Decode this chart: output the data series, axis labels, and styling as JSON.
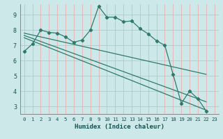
{
  "xlabel": "Humidex (Indice chaleur)",
  "bg_color": "#cce8e8",
  "grid_color": "#e8b0b0",
  "line_color": "#2e7b6e",
  "xlim": [
    -0.5,
    23.5
  ],
  "ylim": [
    2.5,
    9.7
  ],
  "yticks": [
    3,
    4,
    5,
    6,
    7,
    8,
    9
  ],
  "xticks": [
    0,
    1,
    2,
    3,
    4,
    5,
    6,
    7,
    8,
    9,
    10,
    11,
    12,
    13,
    14,
    15,
    16,
    17,
    18,
    19,
    20,
    21,
    22,
    23
  ],
  "curve_main": {
    "x": [
      0,
      1,
      2,
      3,
      4,
      5,
      6,
      7,
      8,
      9,
      10,
      11,
      12,
      13,
      14,
      15,
      16,
      17,
      18,
      19,
      20,
      21,
      22
    ],
    "y": [
      6.6,
      7.1,
      8.0,
      7.85,
      7.8,
      7.55,
      7.2,
      7.35,
      8.0,
      9.55,
      8.85,
      8.85,
      8.55,
      8.6,
      8.1,
      7.75,
      7.3,
      7.0,
      5.1,
      3.2,
      4.0,
      3.5,
      2.7
    ]
  },
  "line1": {
    "x": [
      0,
      22
    ],
    "y": [
      7.8,
      5.1
    ]
  },
  "line2": {
    "x": [
      0,
      22
    ],
    "y": [
      7.65,
      3.3
    ]
  },
  "line3": {
    "x": [
      0,
      22
    ],
    "y": [
      7.5,
      2.75
    ]
  }
}
